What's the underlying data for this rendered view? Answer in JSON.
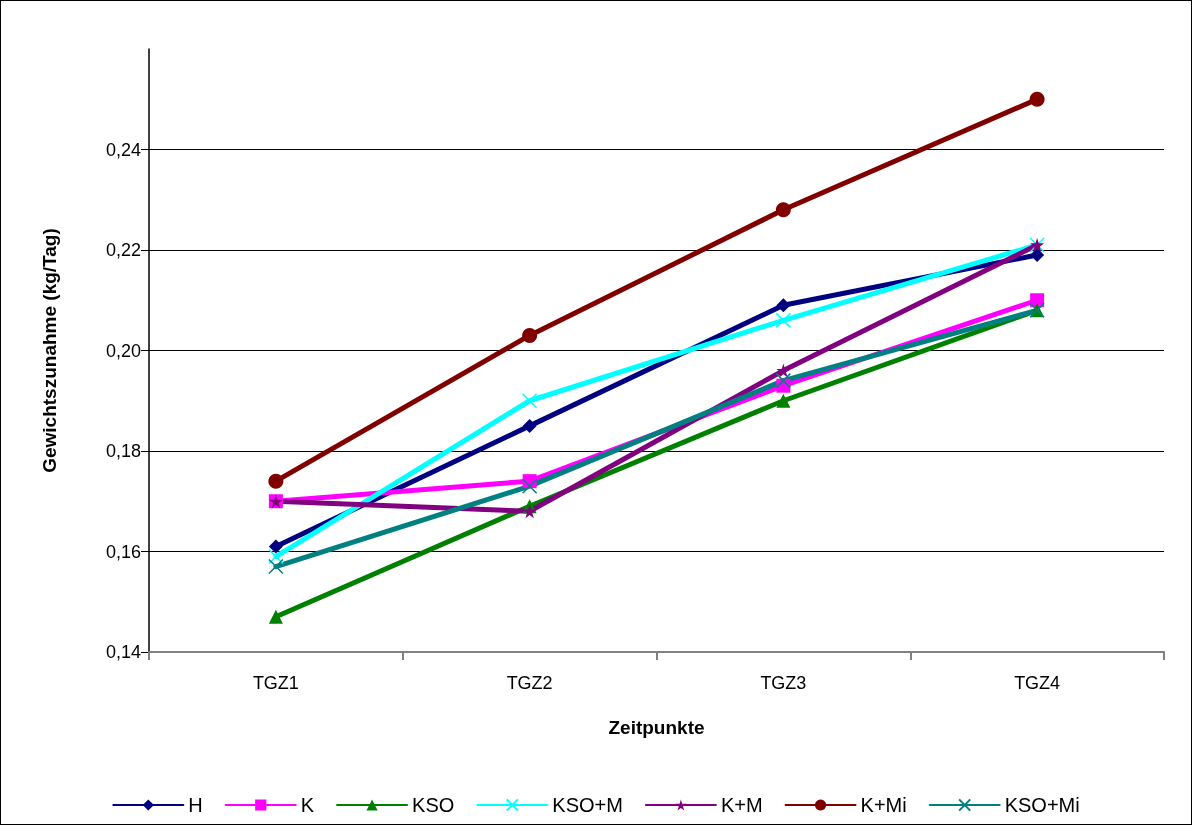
{
  "chart_data": {
    "type": "line",
    "xlabel": "Zeitpunkte",
    "ylabel": "Gewichtszunahme (kg/Tag)",
    "categories": [
      "TGZ1",
      "TGZ2",
      "TGZ3",
      "TGZ4"
    ],
    "series": [
      {
        "name": "H",
        "color": "#000080",
        "marker": "diamond",
        "values": [
          0.161,
          0.185,
          0.209,
          0.219
        ]
      },
      {
        "name": "K",
        "color": "#ff00ff",
        "marker": "square",
        "values": [
          0.17,
          0.174,
          0.193,
          0.21
        ]
      },
      {
        "name": "KSO",
        "color": "#008000",
        "marker": "triangle",
        "values": [
          0.147,
          0.169,
          0.19,
          0.208
        ]
      },
      {
        "name": "KSO+M",
        "color": "#00ffff",
        "marker": "cross",
        "values": [
          0.159,
          0.19,
          0.206,
          0.221
        ]
      },
      {
        "name": "K+M",
        "color": "#800080",
        "marker": "star",
        "values": [
          0.17,
          0.168,
          0.196,
          0.221
        ]
      },
      {
        "name": "K+Mi",
        "color": "#800000",
        "marker": "circle",
        "values": [
          0.174,
          0.203,
          0.228,
          0.25
        ]
      },
      {
        "name": "KSO+Mi",
        "color": "#008080",
        "marker": "cross",
        "values": [
          0.157,
          0.173,
          0.194,
          0.208
        ]
      }
    ],
    "ylim": [
      0.14,
      0.26
    ],
    "yticks": [
      {
        "value": 0.14,
        "label": "0,14"
      },
      {
        "value": 0.16,
        "label": "0,16"
      },
      {
        "value": 0.18,
        "label": "0,18"
      },
      {
        "value": 0.2,
        "label": "0,20"
      },
      {
        "value": 0.22,
        "label": "0,22"
      },
      {
        "value": 0.24,
        "label": "0,24"
      }
    ],
    "grid": "y",
    "legend": "bottom",
    "line_style": "solid"
  }
}
